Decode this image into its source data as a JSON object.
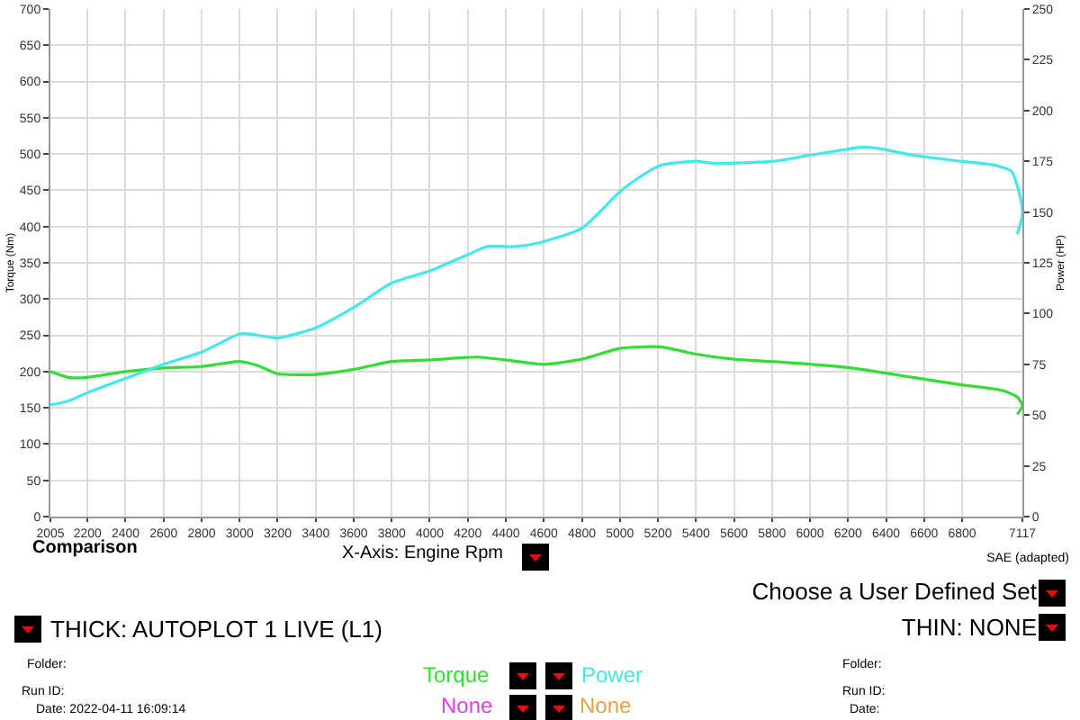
{
  "chart_data": {
    "type": "line",
    "xlabel": "X-Axis: Engine Rpm",
    "ylabel": "Torque (Nm)",
    "y2label": "Power (HP)",
    "xlim": [
      2005,
      7117
    ],
    "xticks": [
      2005,
      2200,
      2400,
      2600,
      2800,
      3000,
      3200,
      3400,
      3600,
      3800,
      4000,
      4200,
      4400,
      4600,
      4800,
      5000,
      5200,
      5400,
      5600,
      5800,
      6000,
      6200,
      6400,
      6600,
      6800,
      7117
    ],
    "ylim": [
      0,
      700
    ],
    "yticks": [
      0,
      50,
      100,
      150,
      200,
      250,
      300,
      350,
      400,
      450,
      500,
      550,
      600,
      650,
      700
    ],
    "y2lim": [
      0,
      250
    ],
    "y2ticks": [
      0,
      25,
      50,
      75,
      100,
      125,
      150,
      175,
      200,
      225,
      250
    ],
    "grid": true,
    "marker": "none",
    "line_style": "solid",
    "series": [
      {
        "name": "Torque",
        "color": "#33dd33",
        "x": [
          2005,
          2100,
          2200,
          2400,
          2600,
          2800,
          3000,
          3100,
          3200,
          3400,
          3600,
          3800,
          4000,
          4250,
          4400,
          4600,
          4800,
          5000,
          5214,
          5400,
          5600,
          5850,
          6220,
          6540,
          6790,
          7010,
          7090,
          7117,
          7090
        ],
        "values": [
          200,
          192,
          192,
          200,
          205,
          207,
          214,
          208,
          197,
          196,
          203,
          214,
          216,
          220,
          216,
          210,
          217,
          232,
          234,
          224,
          217,
          213,
          205,
          192,
          182,
          174,
          165,
          153,
          141
        ]
      },
      {
        "name": "Power",
        "color": "#44e8e8",
        "axis": "y2",
        "x": [
          2005,
          2100,
          2200,
          2400,
          2600,
          2800,
          3000,
          3050,
          3200,
          3400,
          3600,
          3800,
          4000,
          4200,
          4300,
          4450,
          4580,
          4800,
          5000,
          5100,
          5214,
          5400,
          5500,
          5810,
          6000,
          6285,
          6380,
          6540,
          6790,
          6975,
          7060,
          7107,
          7117,
          7090
        ],
        "values": [
          55,
          57,
          61,
          68,
          75,
          81,
          90,
          90,
          88,
          93,
          103,
          115,
          121,
          129,
          133,
          133,
          135,
          142,
          160,
          167,
          173,
          175,
          174,
          175,
          178,
          182,
          181,
          178,
          175,
          173,
          170,
          157,
          149,
          139
        ]
      }
    ],
    "annotations": [
      "Comparison",
      "SAE (adapted)",
      "Choose a User Defined Set",
      "THICK: AUTOPLOT 1 LIVE (L1)",
      "THIN: NONE",
      "Folder:",
      "Run ID:",
      "Date: 2022-04-11 16:09:14",
      "Folder:",
      "Run ID:",
      "Date:",
      "None",
      "None"
    ]
  }
}
